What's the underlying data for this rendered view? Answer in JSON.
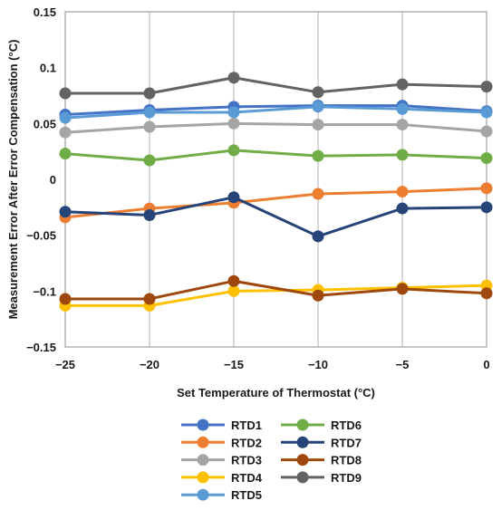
{
  "chart_data": {
    "type": "line",
    "title": "",
    "xlabel": "Set Temperature of Thermostat (°C)",
    "ylabel": "Measurement Error After Error Compensation (°C)",
    "x": [
      -25,
      -20,
      -15,
      -10,
      -5,
      0
    ],
    "x_tick_labels": [
      "−25",
      "−20",
      "−15",
      "−10",
      "−5",
      "0"
    ],
    "xlim": [
      -25,
      0
    ],
    "ylim": [
      -0.15,
      0.15
    ],
    "y_ticks": [
      -0.15,
      -0.1,
      -0.05,
      0,
      0.05,
      0.1,
      0.15
    ],
    "y_tick_labels": [
      "−0.15",
      "−0.1",
      "−0.05",
      "0",
      "0.05",
      "0.1",
      "0.15"
    ],
    "grid": "vertical",
    "legend_position": "bottom",
    "series": [
      {
        "name": "RTD1",
        "color": "#4472c4",
        "values": [
          0.058,
          0.062,
          0.065,
          0.066,
          0.066,
          0.061
        ]
      },
      {
        "name": "RTD2",
        "color": "#ed7d31",
        "values": [
          -0.034,
          -0.026,
          -0.021,
          -0.013,
          -0.011,
          -0.008
        ]
      },
      {
        "name": "RTD3",
        "color": "#a5a5a5",
        "values": [
          0.042,
          0.047,
          0.05,
          0.049,
          0.049,
          0.043
        ]
      },
      {
        "name": "RTD4",
        "color": "#ffc000",
        "values": [
          -0.113,
          -0.113,
          -0.1,
          -0.099,
          -0.097,
          -0.095
        ]
      },
      {
        "name": "RTD5",
        "color": "#5b9bd5",
        "values": [
          0.055,
          0.06,
          0.06,
          0.065,
          0.063,
          0.06
        ]
      },
      {
        "name": "RTD6",
        "color": "#70ad47",
        "values": [
          0.023,
          0.017,
          0.026,
          0.021,
          0.022,
          0.019
        ]
      },
      {
        "name": "RTD7",
        "color": "#264478",
        "values": [
          -0.029,
          -0.032,
          -0.016,
          -0.051,
          -0.026,
          -0.025
        ]
      },
      {
        "name": "RTD8",
        "color": "#9e480e",
        "values": [
          -0.107,
          -0.107,
          -0.091,
          -0.104,
          -0.098,
          -0.102
        ]
      },
      {
        "name": "RTD9",
        "color": "#636363",
        "values": [
          0.077,
          0.077,
          0.091,
          0.078,
          0.085,
          0.083
        ]
      }
    ]
  }
}
